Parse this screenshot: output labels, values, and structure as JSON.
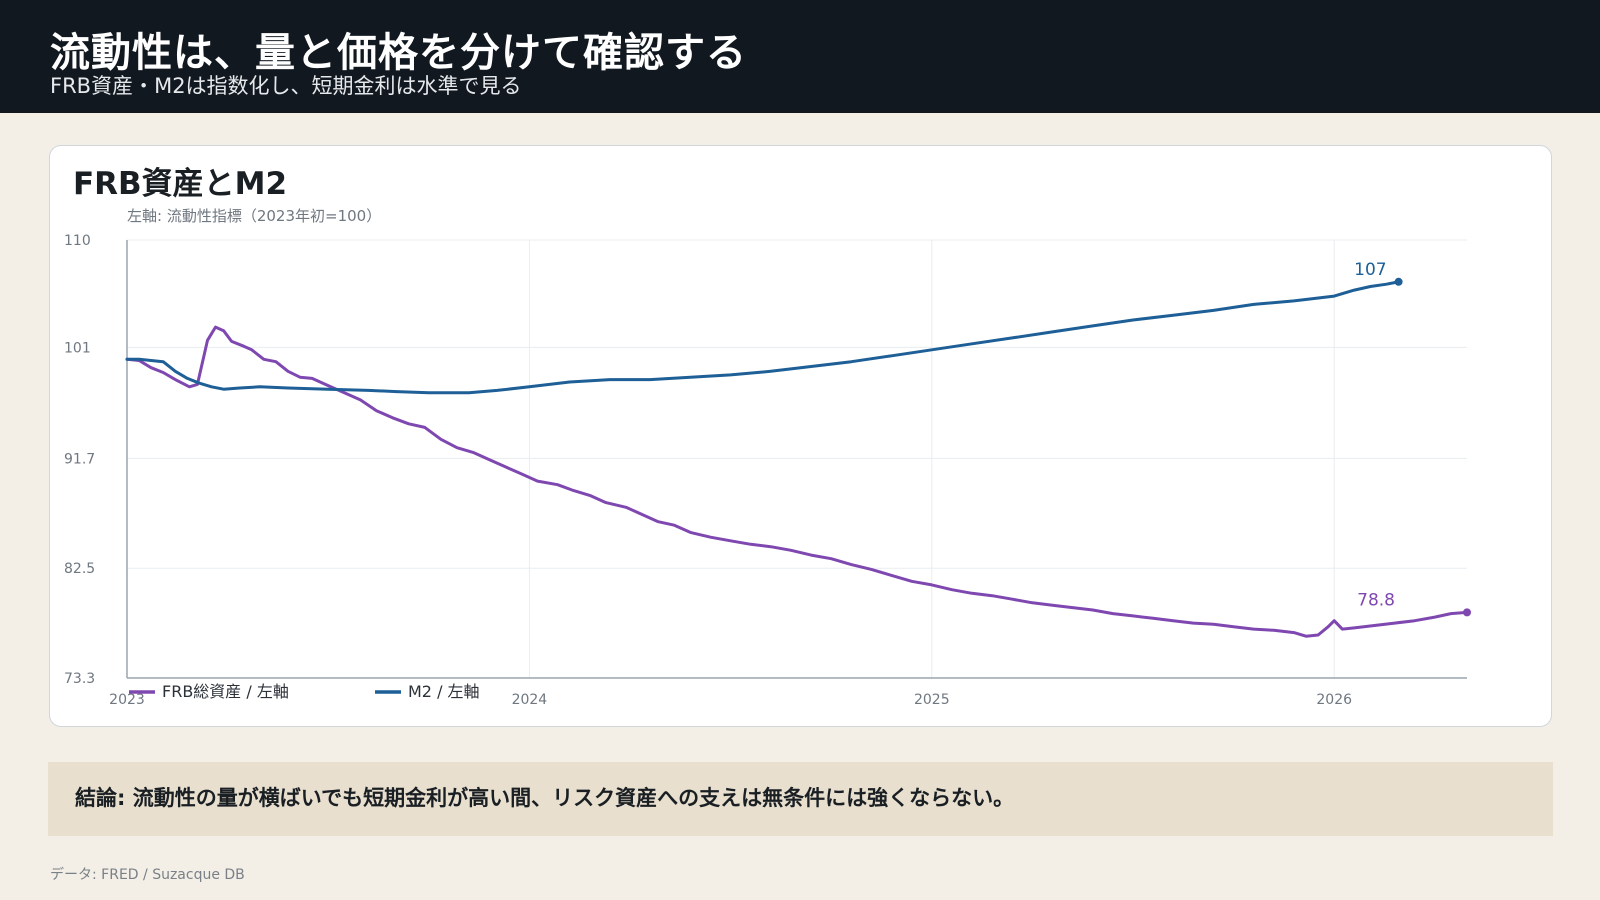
{
  "header": {
    "title": "流動性は、量と価格を分けて確認する",
    "subtitle": "FRB資産・M2は指数化し、短期金利は水準で見る"
  },
  "card": {
    "title": "FRB資産とM2"
  },
  "conclusion": "結論: 流動性の量が横ばいでも短期金利が高い間、リスク資産への支えは無条件には強くならない。",
  "source": "データ: FRED / Suzacque DB",
  "colors": {
    "frb": "#7f48b0",
    "m2": "#1d5f96",
    "axis": "#9aa5ae",
    "grid": "#e9edf0",
    "tick": "#6f7780"
  },
  "chart_data": {
    "type": "line",
    "ylabel": "左軸: 流動性指標（2023年初=100）",
    "ylim": [
      73.3,
      110
    ],
    "yticks": [
      "110",
      "101",
      "91.7",
      "82.5",
      "73.3"
    ],
    "xlim": [
      2023.0,
      2026.33
    ],
    "xticks": [
      {
        "value": 2023,
        "label": "2023"
      },
      {
        "value": 2024,
        "label": "2024"
      },
      {
        "value": 2025,
        "label": "2025"
      },
      {
        "value": 2026,
        "label": "2026"
      }
    ],
    "legend": [
      "FRB総資産 / 左軸",
      "M2 / 左軸"
    ],
    "series": [
      {
        "name": "FRB総資産 / 左軸",
        "color": "#7f48b0",
        "end_label": "78.8",
        "points": [
          [
            2023.0,
            100.0
          ],
          [
            2023.03,
            99.9
          ],
          [
            2023.06,
            99.3
          ],
          [
            2023.09,
            98.9
          ],
          [
            2023.12,
            98.3
          ],
          [
            2023.155,
            97.7
          ],
          [
            2023.175,
            97.9
          ],
          [
            2023.2,
            101.6
          ],
          [
            2023.22,
            102.7
          ],
          [
            2023.24,
            102.4
          ],
          [
            2023.26,
            101.5
          ],
          [
            2023.29,
            101.1
          ],
          [
            2023.31,
            100.8
          ],
          [
            2023.34,
            100.0
          ],
          [
            2023.37,
            99.8
          ],
          [
            2023.4,
            99.0
          ],
          [
            2023.43,
            98.5
          ],
          [
            2023.46,
            98.4
          ],
          [
            2023.5,
            97.8
          ],
          [
            2023.54,
            97.2
          ],
          [
            2023.58,
            96.6
          ],
          [
            2023.62,
            95.7
          ],
          [
            2023.66,
            95.1
          ],
          [
            2023.7,
            94.6
          ],
          [
            2023.74,
            94.3
          ],
          [
            2023.78,
            93.3
          ],
          [
            2023.82,
            92.6
          ],
          [
            2023.86,
            92.2
          ],
          [
            2023.9,
            91.6
          ],
          [
            2023.94,
            91.0
          ],
          [
            2023.98,
            90.4
          ],
          [
            2024.02,
            89.8
          ],
          [
            2024.07,
            89.5
          ],
          [
            2024.11,
            89.0
          ],
          [
            2024.15,
            88.6
          ],
          [
            2024.19,
            88.0
          ],
          [
            2024.24,
            87.6
          ],
          [
            2024.28,
            87.0
          ],
          [
            2024.32,
            86.4
          ],
          [
            2024.36,
            86.1
          ],
          [
            2024.4,
            85.5
          ],
          [
            2024.45,
            85.1
          ],
          [
            2024.5,
            84.8
          ],
          [
            2024.55,
            84.5
          ],
          [
            2024.6,
            84.3
          ],
          [
            2024.65,
            84.0
          ],
          [
            2024.7,
            83.6
          ],
          [
            2024.75,
            83.3
          ],
          [
            2024.8,
            82.8
          ],
          [
            2024.85,
            82.4
          ],
          [
            2024.9,
            81.9
          ],
          [
            2024.95,
            81.4
          ],
          [
            2025.0,
            81.1
          ],
          [
            2025.05,
            80.7
          ],
          [
            2025.1,
            80.4
          ],
          [
            2025.15,
            80.2
          ],
          [
            2025.2,
            79.9
          ],
          [
            2025.25,
            79.6
          ],
          [
            2025.3,
            79.4
          ],
          [
            2025.35,
            79.2
          ],
          [
            2025.4,
            79.0
          ],
          [
            2025.45,
            78.7
          ],
          [
            2025.5,
            78.5
          ],
          [
            2025.55,
            78.3
          ],
          [
            2025.6,
            78.1
          ],
          [
            2025.65,
            77.9
          ],
          [
            2025.7,
            77.8
          ],
          [
            2025.75,
            77.6
          ],
          [
            2025.8,
            77.4
          ],
          [
            2025.85,
            77.3
          ],
          [
            2025.9,
            77.1
          ],
          [
            2025.93,
            76.8
          ],
          [
            2025.96,
            76.9
          ],
          [
            2025.985,
            77.6
          ],
          [
            2026.0,
            78.1
          ],
          [
            2026.02,
            77.4
          ],
          [
            2026.05,
            77.5
          ],
          [
            2026.1,
            77.7
          ],
          [
            2026.15,
            77.9
          ],
          [
            2026.2,
            78.1
          ],
          [
            2026.25,
            78.4
          ],
          [
            2026.29,
            78.7
          ],
          [
            2026.33,
            78.8
          ]
        ]
      },
      {
        "name": "M2 / 左軸",
        "color": "#1d5f96",
        "end_label": "107",
        "points": [
          [
            2023.0,
            100.0
          ],
          [
            2023.03,
            100.0
          ],
          [
            2023.06,
            99.9
          ],
          [
            2023.09,
            99.8
          ],
          [
            2023.12,
            99.0
          ],
          [
            2023.15,
            98.4
          ],
          [
            2023.18,
            98.0
          ],
          [
            2023.21,
            97.7
          ],
          [
            2023.24,
            97.5
          ],
          [
            2023.28,
            97.6
          ],
          [
            2023.33,
            97.7
          ],
          [
            2023.4,
            97.6
          ],
          [
            2023.5,
            97.5
          ],
          [
            2023.6,
            97.4
          ],
          [
            2023.67,
            97.3
          ],
          [
            2023.75,
            97.2
          ],
          [
            2023.85,
            97.2
          ],
          [
            2023.92,
            97.4
          ],
          [
            2024.0,
            97.7
          ],
          [
            2024.1,
            98.1
          ],
          [
            2024.2,
            98.3
          ],
          [
            2024.3,
            98.3
          ],
          [
            2024.4,
            98.5
          ],
          [
            2024.5,
            98.7
          ],
          [
            2024.6,
            99.0
          ],
          [
            2024.7,
            99.4
          ],
          [
            2024.8,
            99.8
          ],
          [
            2024.9,
            100.3
          ],
          [
            2025.0,
            100.8
          ],
          [
            2025.1,
            101.3
          ],
          [
            2025.2,
            101.8
          ],
          [
            2025.3,
            102.3
          ],
          [
            2025.4,
            102.8
          ],
          [
            2025.5,
            103.3
          ],
          [
            2025.6,
            103.7
          ],
          [
            2025.7,
            104.1
          ],
          [
            2025.8,
            104.6
          ],
          [
            2025.9,
            104.9
          ],
          [
            2026.0,
            105.3
          ],
          [
            2026.05,
            105.8
          ],
          [
            2026.09,
            106.1
          ],
          [
            2026.13,
            106.3
          ],
          [
            2026.16,
            106.5
          ]
        ]
      }
    ]
  }
}
